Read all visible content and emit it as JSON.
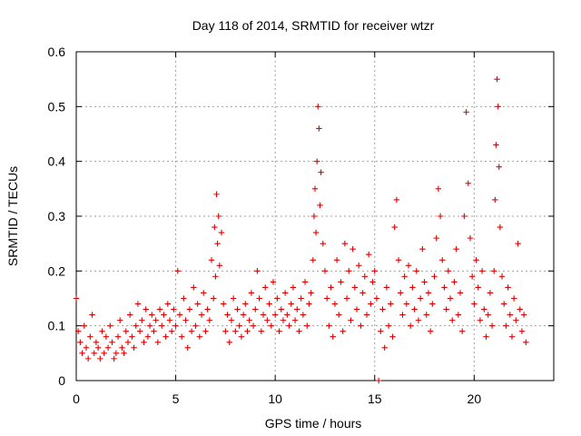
{
  "chart_data": {
    "type": "scatter",
    "title": "Day 118 of 2014, SRMTID for receiver wtzr",
    "xlabel": "GPS time / hours",
    "ylabel": "SRMTID / TECUs",
    "xlim": [
      0,
      24
    ],
    "ylim": [
      0,
      0.6
    ],
    "x_ticks": [
      0,
      5,
      10,
      15,
      20
    ],
    "x_tick_labels": [
      "0",
      "5",
      "10",
      "15",
      "20"
    ],
    "y_ticks": [
      0,
      0.1,
      0.2,
      0.3,
      0.4,
      0.5,
      0.6
    ],
    "y_tick_labels": [
      "0",
      "0.1",
      "0.2",
      "0.3",
      "0.4",
      "0.5",
      "0.6"
    ],
    "grid": true,
    "marker": "+",
    "color": "#e00000",
    "series": [
      {
        "name": "SRMTID",
        "x": [
          0.0,
          0.1,
          0.2,
          0.3,
          0.4,
          0.5,
          0.6,
          0.7,
          0.8,
          0.9,
          1.0,
          1.1,
          1.2,
          1.3,
          1.4,
          1.5,
          1.6,
          1.7,
          1.8,
          1.9,
          2.0,
          2.1,
          2.2,
          2.3,
          2.4,
          2.5,
          2.6,
          2.7,
          2.8,
          2.9,
          3.0,
          3.1,
          3.2,
          3.3,
          3.4,
          3.5,
          3.6,
          3.7,
          3.8,
          3.9,
          4.0,
          4.1,
          4.2,
          4.3,
          4.4,
          4.5,
          4.6,
          4.7,
          4.8,
          4.9,
          5.0,
          5.1,
          5.2,
          5.3,
          5.4,
          5.5,
          5.6,
          5.7,
          5.8,
          5.9,
          6.0,
          6.1,
          6.2,
          6.3,
          6.4,
          6.5,
          6.6,
          6.7,
          6.8,
          6.9,
          6.95,
          7.0,
          7.05,
          7.1,
          7.15,
          7.2,
          7.3,
          7.4,
          7.5,
          7.6,
          7.7,
          7.8,
          7.9,
          8.0,
          8.1,
          8.2,
          8.3,
          8.4,
          8.5,
          8.6,
          8.7,
          8.8,
          8.9,
          9.0,
          9.1,
          9.2,
          9.3,
          9.4,
          9.5,
          9.6,
          9.7,
          9.8,
          9.9,
          10.0,
          10.1,
          10.2,
          10.3,
          10.4,
          10.5,
          10.6,
          10.7,
          10.8,
          10.9,
          11.0,
          11.1,
          11.2,
          11.3,
          11.4,
          11.5,
          11.6,
          11.7,
          11.8,
          11.9,
          11.95,
          12.0,
          12.05,
          12.1,
          12.15,
          12.2,
          12.25,
          12.3,
          12.4,
          12.5,
          12.6,
          12.7,
          12.8,
          12.9,
          13.0,
          13.1,
          13.2,
          13.3,
          13.4,
          13.5,
          13.6,
          13.7,
          13.8,
          13.9,
          14.0,
          14.1,
          14.2,
          14.3,
          14.4,
          14.5,
          14.6,
          14.7,
          14.8,
          14.9,
          15.0,
          15.1,
          15.2,
          15.3,
          15.4,
          15.5,
          15.6,
          15.7,
          15.8,
          15.9,
          16.0,
          16.1,
          16.2,
          16.3,
          16.4,
          16.5,
          16.6,
          16.7,
          16.8,
          16.9,
          17.0,
          17.1,
          17.2,
          17.3,
          17.4,
          17.5,
          17.6,
          17.7,
          17.8,
          17.9,
          18.0,
          18.1,
          18.2,
          18.3,
          18.4,
          18.5,
          18.6,
          18.7,
          18.8,
          18.9,
          19.0,
          19.1,
          19.2,
          19.3,
          19.4,
          19.5,
          19.6,
          19.7,
          19.8,
          19.9,
          20.0,
          20.1,
          20.2,
          20.3,
          20.4,
          20.5,
          20.6,
          20.7,
          20.8,
          20.9,
          21.0,
          21.05,
          21.1,
          21.15,
          21.2,
          21.25,
          21.3,
          21.4,
          21.5,
          21.6,
          21.7,
          21.8,
          21.9,
          22.0,
          22.1,
          22.2,
          22.3,
          22.4,
          22.5,
          22.6
        ],
        "y": [
          0.15,
          0.09,
          0.07,
          0.05,
          0.1,
          0.06,
          0.04,
          0.08,
          0.12,
          0.05,
          0.07,
          0.06,
          0.04,
          0.09,
          0.05,
          0.08,
          0.06,
          0.1,
          0.07,
          0.04,
          0.05,
          0.08,
          0.11,
          0.06,
          0.05,
          0.09,
          0.07,
          0.12,
          0.08,
          0.06,
          0.1,
          0.14,
          0.09,
          0.11,
          0.07,
          0.13,
          0.08,
          0.1,
          0.12,
          0.09,
          0.11,
          0.07,
          0.13,
          0.1,
          0.12,
          0.08,
          0.14,
          0.11,
          0.09,
          0.13,
          0.1,
          0.2,
          0.12,
          0.08,
          0.15,
          0.11,
          0.06,
          0.13,
          0.09,
          0.17,
          0.1,
          0.14,
          0.08,
          0.12,
          0.16,
          0.09,
          0.13,
          0.11,
          0.22,
          0.15,
          0.28,
          0.19,
          0.34,
          0.25,
          0.3,
          0.21,
          0.27,
          0.14,
          0.09,
          0.12,
          0.07,
          0.11,
          0.15,
          0.09,
          0.13,
          0.1,
          0.08,
          0.12,
          0.14,
          0.09,
          0.11,
          0.16,
          0.1,
          0.13,
          0.2,
          0.15,
          0.09,
          0.12,
          0.17,
          0.11,
          0.14,
          0.1,
          0.18,
          0.12,
          0.15,
          0.09,
          0.13,
          0.11,
          0.16,
          0.12,
          0.1,
          0.14,
          0.17,
          0.11,
          0.13,
          0.09,
          0.15,
          0.12,
          0.18,
          0.1,
          0.14,
          0.16,
          0.22,
          0.3,
          0.35,
          0.27,
          0.4,
          0.5,
          0.46,
          0.32,
          0.38,
          0.25,
          0.2,
          0.15,
          0.1,
          0.17,
          0.08,
          0.14,
          0.22,
          0.12,
          0.18,
          0.09,
          0.25,
          0.15,
          0.2,
          0.11,
          0.24,
          0.17,
          0.13,
          0.21,
          0.1,
          0.16,
          0.19,
          0.12,
          0.23,
          0.14,
          0.18,
          0.2,
          0.15,
          0.0,
          0.09,
          0.13,
          0.06,
          0.17,
          0.1,
          0.14,
          0.08,
          0.28,
          0.33,
          0.22,
          0.16,
          0.12,
          0.19,
          0.14,
          0.21,
          0.1,
          0.17,
          0.13,
          0.2,
          0.11,
          0.15,
          0.24,
          0.18,
          0.12,
          0.16,
          0.09,
          0.14,
          0.19,
          0.26,
          0.35,
          0.3,
          0.22,
          0.17,
          0.13,
          0.2,
          0.15,
          0.11,
          0.18,
          0.24,
          0.12,
          0.16,
          0.09,
          0.3,
          0.49,
          0.36,
          0.26,
          0.19,
          0.14,
          0.22,
          0.17,
          0.11,
          0.2,
          0.13,
          0.08,
          0.12,
          0.16,
          0.1,
          0.2,
          0.33,
          0.43,
          0.55,
          0.5,
          0.39,
          0.28,
          0.19,
          0.14,
          0.1,
          0.17,
          0.12,
          0.08,
          0.15,
          0.11,
          0.25,
          0.13,
          0.09,
          0.12,
          0.07
        ]
      }
    ]
  }
}
